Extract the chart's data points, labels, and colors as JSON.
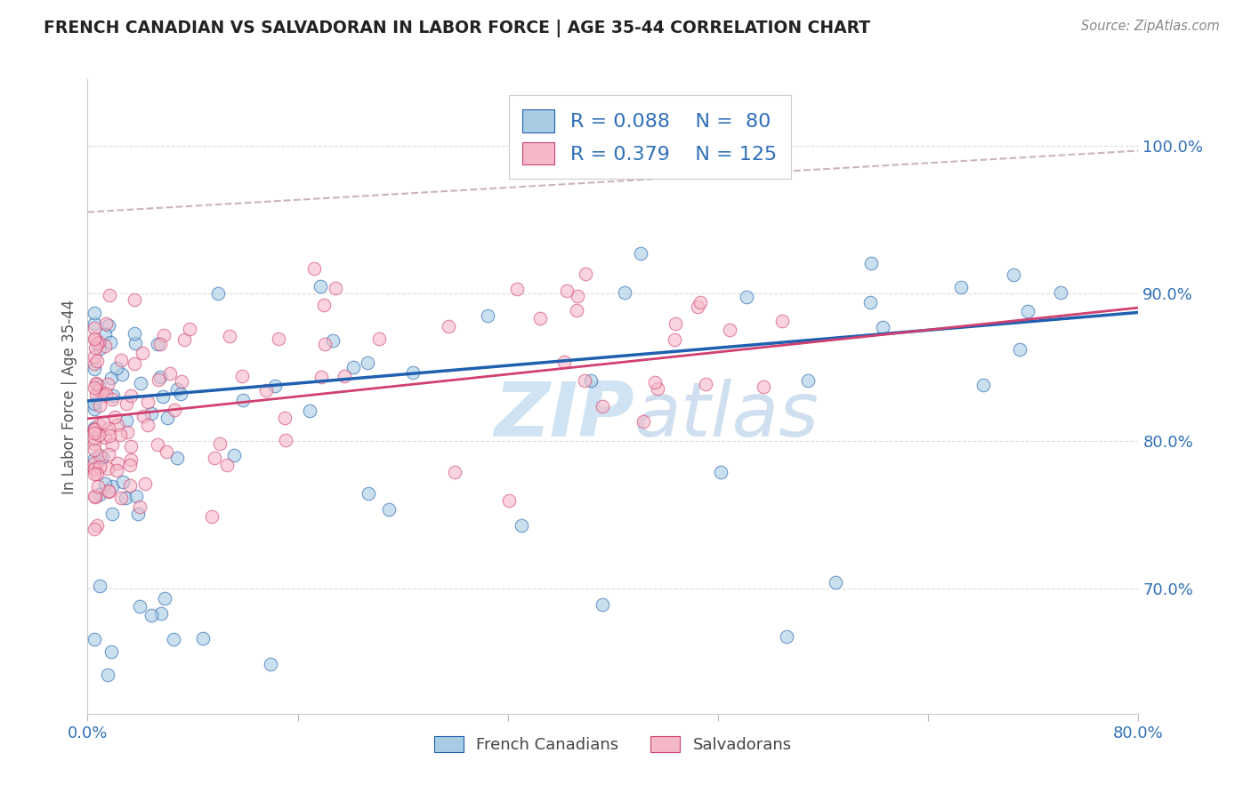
{
  "title": "FRENCH CANADIAN VS SALVADORAN IN LABOR FORCE | AGE 35-44 CORRELATION CHART",
  "source": "Source: ZipAtlas.com",
  "ylabel": "In Labor Force | Age 35-44",
  "legend_label1": "French Canadians",
  "legend_label2": "Salvadorans",
  "r1": 0.088,
  "n1": 80,
  "r2": 0.379,
  "n2": 125,
  "color_blue": "#a8cce4",
  "color_pink": "#f5b8c8",
  "line_blue": "#2060b0",
  "line_pink": "#d04070",
  "xlim": [
    0.0,
    0.8
  ],
  "ylim": [
    0.615,
    1.045
  ],
  "yticks_right": [
    1.0,
    0.9,
    0.8,
    0.7
  ],
  "xticks": [
    0.0,
    0.16,
    0.32,
    0.48,
    0.64,
    0.8
  ],
  "background_color": "#ffffff",
  "grid_color": "#cccccc",
  "watermark_color": "#c8dff0"
}
